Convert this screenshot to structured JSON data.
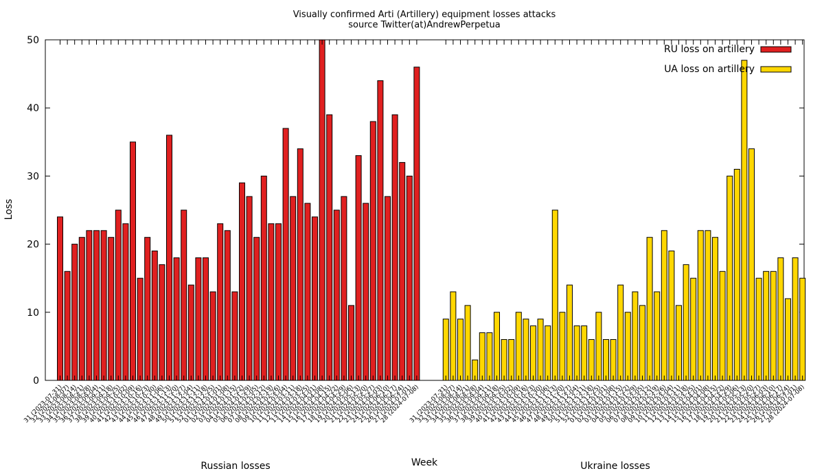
{
  "chart_data": {
    "type": "bar",
    "title": "Visually confirmed Arti (Artillery) equipment losses attacks",
    "subtitle": "source Twitter(at)AndrewPerpetua",
    "xlabel": "Week",
    "ylabel": "Loss",
    "ylim": [
      0,
      50
    ],
    "yticks": [
      0,
      10,
      20,
      30,
      40,
      50
    ],
    "grid": false,
    "legend_position": "top-right",
    "groups": [
      {
        "label": "Russian losses",
        "series_name": "RU loss on artillery",
        "color": "#e02020",
        "categories": [
          "31 (2023-07-31)",
          "32 (2023-08-07)",
          "33 (2023-08-14)",
          "34 (2023-08-21)",
          "35 (2023-08-28)",
          "36 (2023-09-04)",
          "37 (2023-09-11)",
          "38 (2023-09-18)",
          "39 (2023-09-25)",
          "40 (2023-10-02)",
          "41 (2023-10-09)",
          "42 (2023-10-16)",
          "43 (2023-10-23)",
          "44 (2023-10-30)",
          "45 (2023-11-06)",
          "46 (2023-11-13)",
          "47 (2023-11-20)",
          "48 (2023-11-27)",
          "49 (2023-12-04)",
          "50 (2023-12-11)",
          "51 (2023-12-18)",
          "52 (2023-12-25)",
          "01 (2024-01-01)",
          "02 (2024-01-08)",
          "03 (2024-01-15)",
          "04 (2024-01-22)",
          "05 (2024-01-29)",
          "06 (2024-02-05)",
          "07 (2024-02-12)",
          "08 (2024-02-19)",
          "09 (2024-02-26)",
          "10 (2024-03-04)",
          "11 (2024-03-11)",
          "12 (2024-03-18)",
          "13 (2024-03-25)",
          "14 (2024-04-01)",
          "15 (2024-04-08)",
          "16 (2024-04-15)",
          "17 (2024-04-22)",
          "18 (2024-04-29)",
          "19 (2024-05-06)",
          "20 (2024-05-13)",
          "21 (2024-05-20)",
          "22 (2024-05-27)",
          "23 (2024-06-03)",
          "24 (2024-06-10)",
          "25 (2024-06-17)",
          "26 (2024-06-24)",
          "27 (2024-07-01)",
          "28 (2024-07-08)"
        ],
        "values": [
          24,
          16,
          20,
          21,
          22,
          22,
          22,
          21,
          25,
          23,
          35,
          15,
          21,
          19,
          17,
          36,
          18,
          25,
          14,
          18,
          18,
          13,
          23,
          22,
          13,
          29,
          27,
          21,
          30,
          23,
          23,
          37,
          27,
          34,
          26,
          24,
          50,
          39,
          25,
          27,
          11,
          33,
          26,
          38,
          44,
          27,
          39,
          32,
          30,
          46
        ]
      },
      {
        "label": "Ukraine losses",
        "series_name": "UA loss on artillery",
        "color": "#ffd700",
        "categories": [
          "31 (2023-07-31)",
          "32 (2023-08-07)",
          "33 (2023-08-14)",
          "34 (2023-08-21)",
          "35 (2023-08-28)",
          "36 (2023-09-04)",
          "37 (2023-09-11)",
          "38 (2023-09-18)",
          "39 (2023-09-25)",
          "40 (2023-10-02)",
          "41 (2023-10-09)",
          "42 (2023-10-16)",
          "43 (2023-10-23)",
          "44 (2023-10-30)",
          "45 (2023-11-06)",
          "46 (2023-11-13)",
          "47 (2023-11-20)",
          "48 (2023-11-27)",
          "49 (2023-12-04)",
          "50 (2023-12-11)",
          "51 (2023-12-18)",
          "52 (2023-12-25)",
          "01 (2024-01-01)",
          "02 (2024-01-08)",
          "03 (2024-01-15)",
          "04 (2024-01-22)",
          "05 (2024-01-29)",
          "06 (2024-02-05)",
          "07 (2024-02-12)",
          "08 (2024-02-19)",
          "09 (2024-02-26)",
          "10 (2024-03-04)",
          "11 (2024-03-11)",
          "12 (2024-03-18)",
          "13 (2024-03-25)",
          "14 (2024-04-01)",
          "15 (2024-04-08)",
          "16 (2024-04-15)",
          "17 (2024-04-22)",
          "18 (2024-04-29)",
          "19 (2024-05-06)",
          "20 (2024-05-13)",
          "21 (2024-05-20)",
          "22 (2024-05-27)",
          "23 (2024-06-03)",
          "24 (2024-06-10)",
          "25 (2024-06-17)",
          "26 (2024-06-24)",
          "27 (2024-07-01)",
          "28 (2024-07-08)"
        ],
        "values": [
          9,
          13,
          9,
          11,
          3,
          7,
          7,
          10,
          6,
          6,
          10,
          9,
          8,
          9,
          8,
          25,
          10,
          14,
          8,
          8,
          6,
          10,
          6,
          6,
          14,
          10,
          13,
          11,
          21,
          13,
          22,
          19,
          11,
          17,
          15,
          22,
          22,
          21,
          16,
          30,
          31,
          47,
          34,
          15,
          16,
          16,
          18,
          12,
          18,
          15
        ]
      }
    ]
  }
}
